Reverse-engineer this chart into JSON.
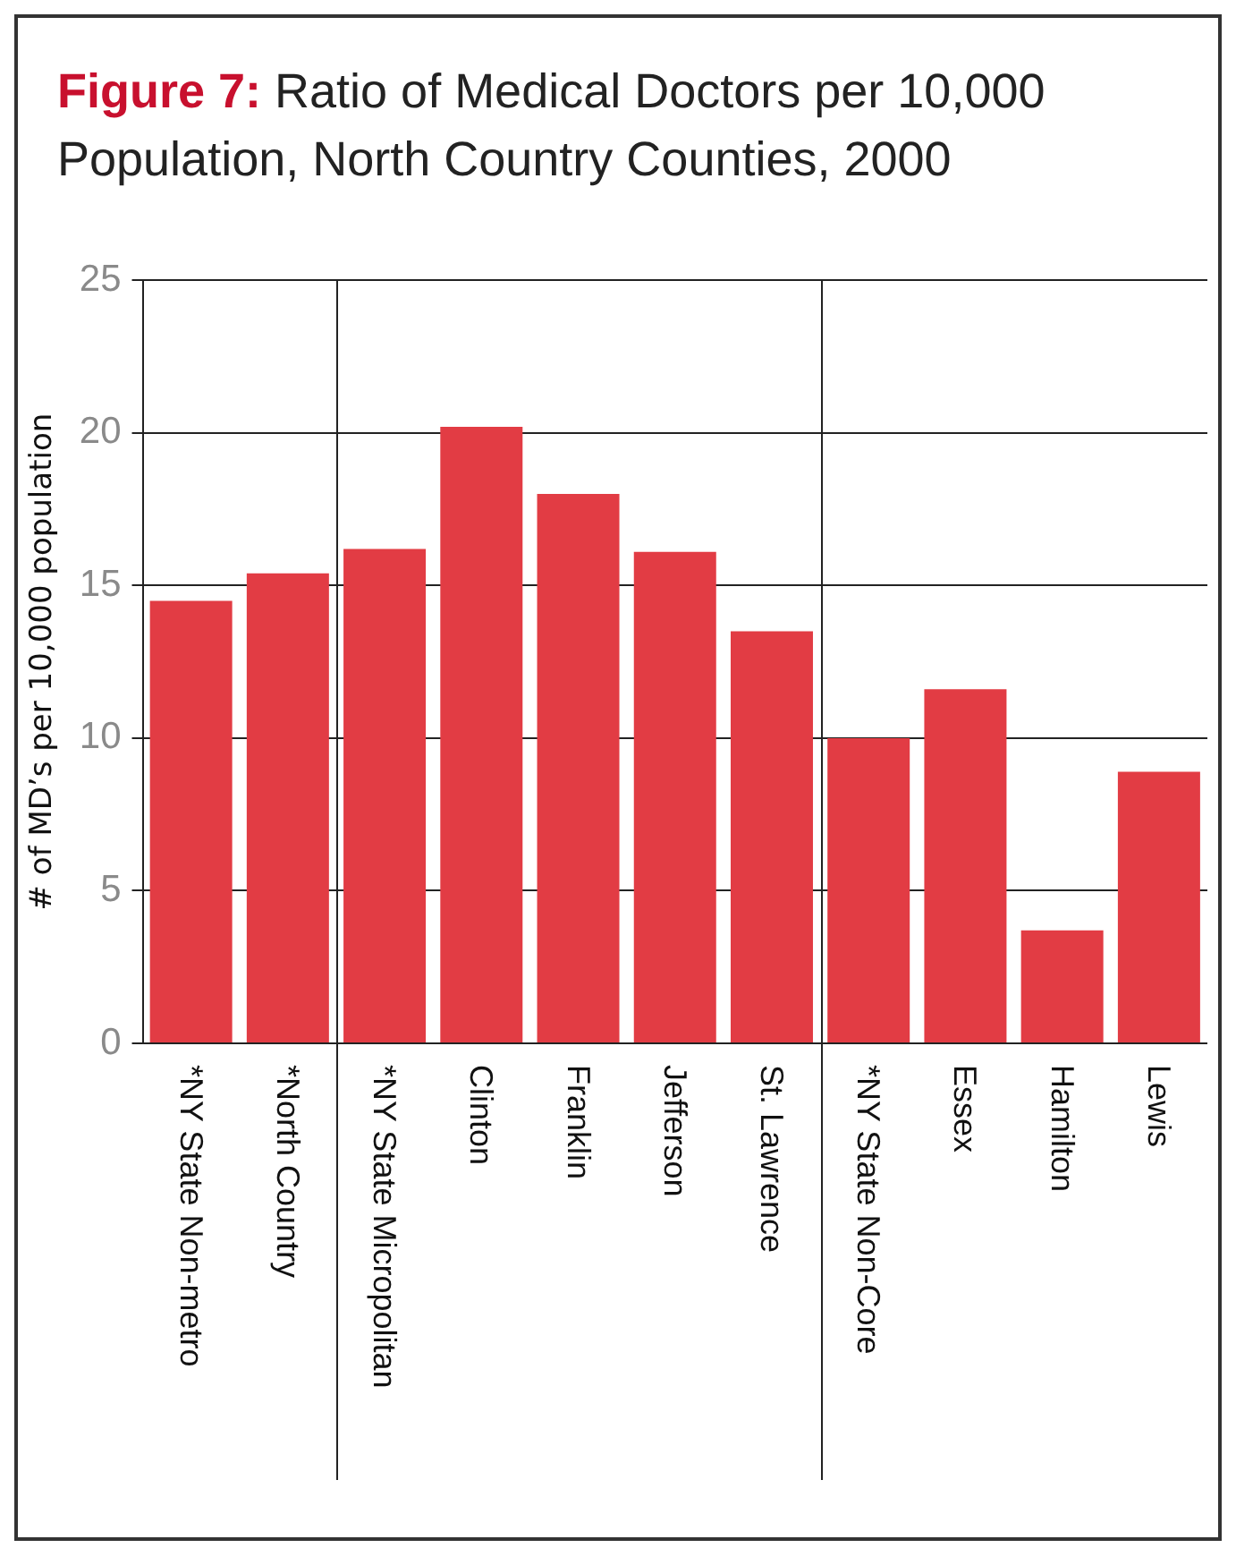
{
  "chart_data": {
    "type": "bar",
    "title": "Figure 7: Ratio of Medical Doctors per 10,000 Population, North Country Counties, 2000",
    "ylabel": "# of MD’s per 10,000 population",
    "categories": [
      "*NY State Non-metro",
      "*North Country",
      "*NY State Micropolitan",
      "Clinton",
      "Franklin",
      "Jefferson",
      "St. Lawrence",
      "*NY State Non-Core",
      "Essex",
      "Hamilton",
      "Lewis"
    ],
    "values": [
      14.5,
      15.4,
      16.2,
      20.2,
      18.0,
      16.1,
      13.5,
      10.0,
      11.6,
      3.7,
      8.9
    ],
    "color": "#e23c44",
    "ylim": [
      0,
      25
    ],
    "yticks": [
      0,
      5,
      10,
      15,
      20,
      25
    ],
    "grid": "y",
    "legend": false
  }
}
